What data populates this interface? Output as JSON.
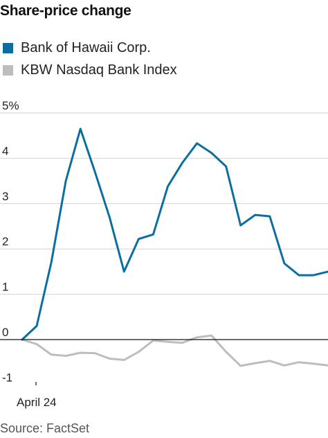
{
  "chart_data": {
    "type": "line",
    "title": "Share-price change",
    "source": "Source: FactSet",
    "y_unit_tick": "5%",
    "ylim": [
      -1,
      5
    ],
    "yticks": [
      {
        "v": 5,
        "label": "5%"
      },
      {
        "v": 4,
        "label": "4"
      },
      {
        "v": 3,
        "label": "3"
      },
      {
        "v": 2,
        "label": "2"
      },
      {
        "v": 1,
        "label": "1"
      },
      {
        "v": 0,
        "label": "0"
      },
      {
        "v": -1,
        "label": "-1"
      }
    ],
    "x_tick_label": "April 24",
    "grid": true,
    "legend_placement": "top-left",
    "series": [
      {
        "name": "Bank of Hawaii Corp.",
        "color": "#0a6fa0",
        "values": [
          0,
          0.3,
          1.7,
          3.5,
          4.65,
          3.7,
          2.7,
          1.5,
          2.22,
          2.32,
          3.38,
          3.9,
          4.33,
          4.12,
          3.82,
          2.52,
          2.75,
          2.72,
          1.68,
          1.42,
          1.42,
          1.5
        ]
      },
      {
        "name": "KBW Nasdaq Bank Index",
        "color": "#bdbdbd",
        "values": [
          0,
          -0.1,
          -0.33,
          -0.36,
          -0.29,
          -0.3,
          -0.42,
          -0.45,
          -0.27,
          -0.02,
          -0.05,
          -0.07,
          0.05,
          0.09,
          -0.27,
          -0.58,
          -0.52,
          -0.47,
          -0.57,
          -0.5,
          -0.53,
          -0.57
        ]
      }
    ]
  }
}
